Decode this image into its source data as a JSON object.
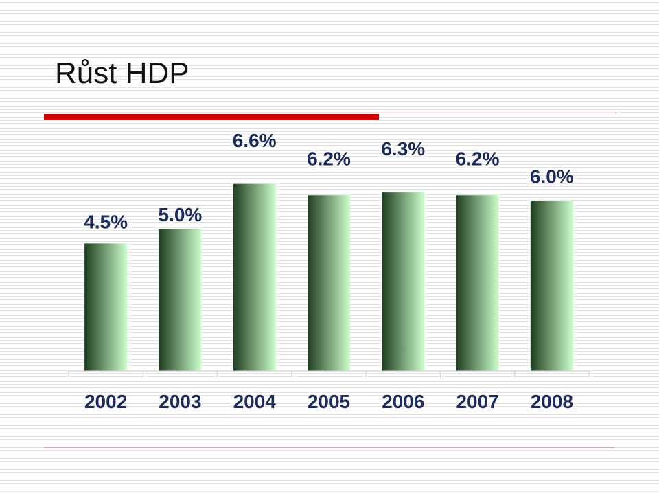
{
  "slide": {
    "title": "Růst HDP"
  },
  "colors": {
    "accent": "#cc0000",
    "bar_dark": "#1f3d1f",
    "bar_light": "#ccffcc",
    "text": "#1a2a5a"
  },
  "chart_data": {
    "type": "bar",
    "categories": [
      "2002",
      "2003",
      "2004",
      "2005",
      "2006",
      "2007",
      "2008"
    ],
    "values": [
      4.5,
      5.0,
      6.6,
      6.2,
      6.3,
      6.2,
      6.0
    ],
    "data_labels": [
      "4.5%",
      "5.0%",
      "6.6%",
      "6.2%",
      "6.3%",
      "6.2%",
      "6.0%"
    ],
    "title": "",
    "xlabel": "",
    "ylabel": "",
    "ylim": [
      0,
      8
    ],
    "grid": false,
    "legend": "none"
  }
}
